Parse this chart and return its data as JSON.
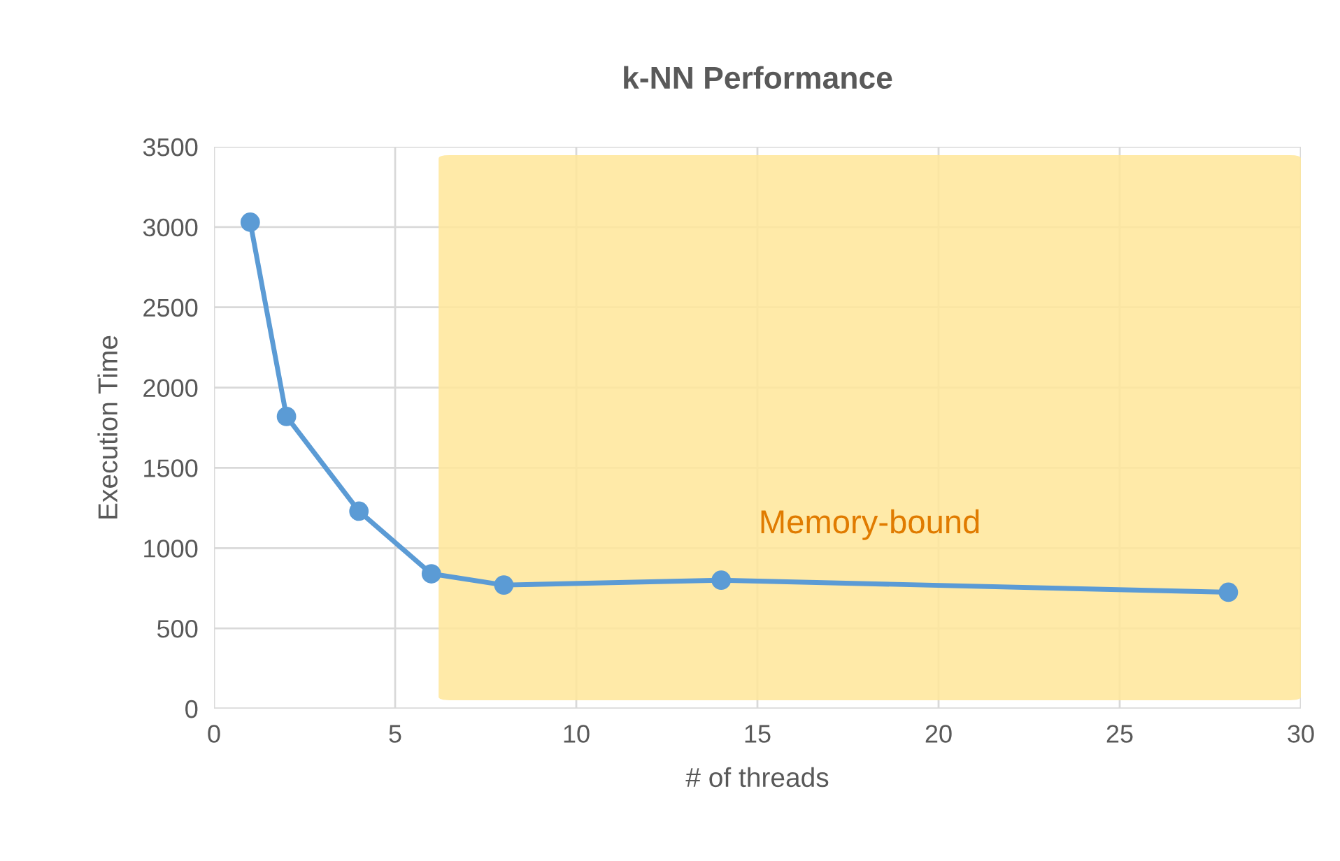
{
  "chart_data": {
    "type": "line",
    "title": "k-NN Performance",
    "xlabel": "# of threads",
    "ylabel": "Execution Time",
    "x": [
      1,
      2,
      4,
      6,
      8,
      14,
      28
    ],
    "series": [
      {
        "color": "#5b9bd5",
        "values": [
          3030,
          1820,
          1230,
          840,
          770,
          800,
          725
        ]
      }
    ],
    "xlim": [
      0,
      30
    ],
    "xticks": [
      0,
      5,
      10,
      15,
      20,
      25,
      30
    ],
    "ylim": [
      0,
      3500
    ],
    "yticks": [
      0,
      500,
      1000,
      1500,
      2000,
      2500,
      3000,
      3500
    ],
    "bands": [
      {
        "axis": "x",
        "from": 6.2,
        "to": 30,
        "label": "Memory-bound",
        "color": "#ffe699"
      }
    ],
    "grid": true,
    "marker": "circle",
    "line_style": "solid",
    "legend": false
  }
}
